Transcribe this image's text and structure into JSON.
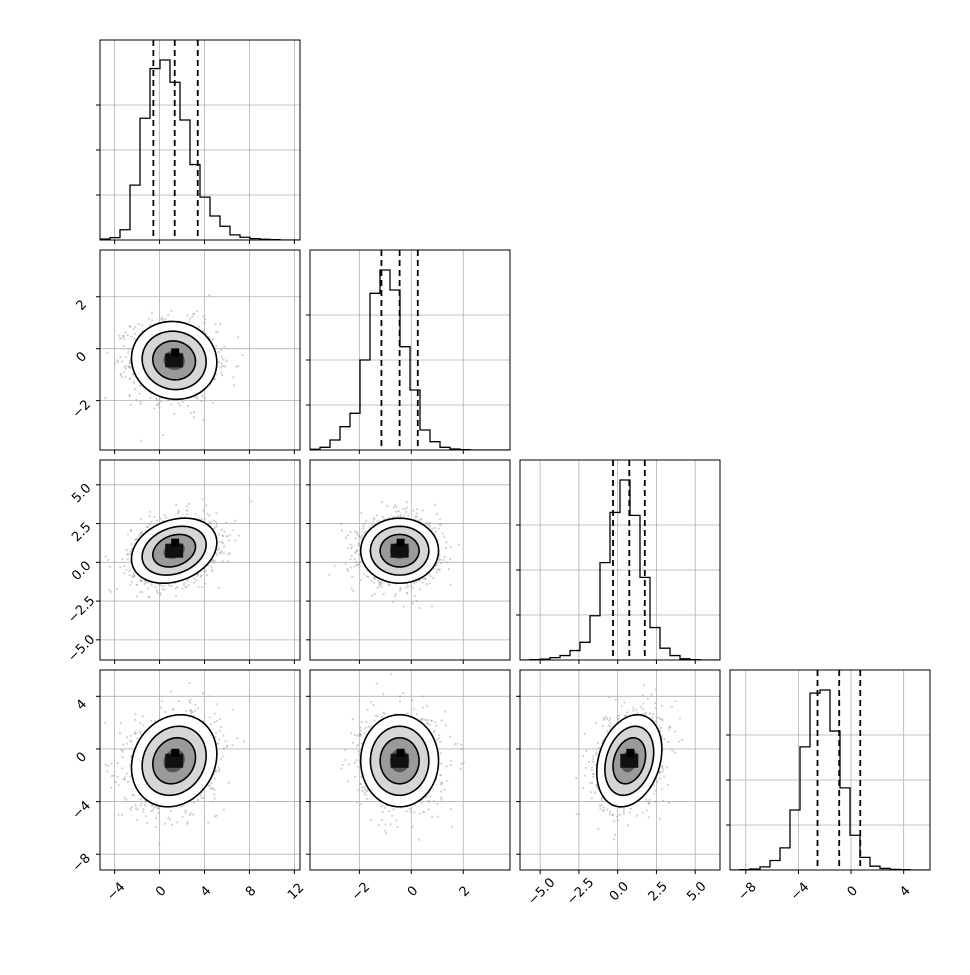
{
  "chart_data": {
    "type": "corner",
    "n_params": 4,
    "grid": true,
    "quantiles": [
      0.16,
      0.5,
      0.84
    ],
    "params": [
      {
        "mean": 1.3,
        "sd": 1.9,
        "lim": [
          -5.3,
          12.5
        ],
        "ticks": [
          -4,
          0,
          4,
          8,
          12
        ],
        "tick_labels": [
          "−4",
          "0",
          "4",
          "8",
          "12"
        ],
        "quantile_values": [
          -0.55,
          1.35,
          3.4
        ]
      },
      {
        "mean": -0.45,
        "sd": 0.75,
        "lim": [
          -3.9,
          3.8
        ],
        "ticks": [
          -2,
          0,
          2
        ],
        "tick_labels": [
          "−2",
          "0",
          "2"
        ],
        "quantile_values": [
          -1.15,
          -0.45,
          0.25
        ]
      },
      {
        "mean": 0.75,
        "sd": 1.05,
        "lim": [
          -6.3,
          6.6
        ],
        "ticks": [
          -5,
          -2.5,
          0,
          2.5,
          5
        ],
        "tick_labels": [
          "−5.0",
          "−2.5",
          "0.0",
          "2.5",
          "5.0"
        ],
        "quantile_values": [
          -0.3,
          0.75,
          1.75
        ]
      },
      {
        "mean": -0.9,
        "sd": 1.75,
        "lim": [
          -9.2,
          6.0
        ],
        "ticks": [
          -8,
          -4,
          0,
          4
        ],
        "tick_labels": [
          "−8",
          "−4",
          "0",
          "4"
        ],
        "quantile_values": [
          -2.55,
          -0.9,
          0.7
        ]
      }
    ],
    "correlations": [
      [
        1.0,
        -0.05,
        0.25,
        0.15
      ],
      [
        -0.05,
        1.0,
        0.0,
        0.0
      ],
      [
        0.25,
        0.0,
        1.0,
        0.25
      ],
      [
        0.15,
        0.0,
        0.25,
        1.0
      ]
    ],
    "histograms": [
      {
        "bins": 20,
        "counts": [
          3,
          7,
          30,
          160,
          355,
          500,
          525,
          460,
          350,
          220,
          125,
          70,
          40,
          15,
          8,
          4,
          2,
          1,
          0,
          0
        ]
      },
      {
        "bins": 20,
        "counts": [
          2,
          8,
          30,
          70,
          110,
          270,
          470,
          540,
          480,
          310,
          180,
          60,
          25,
          8,
          3,
          1,
          0,
          0,
          0,
          0
        ]
      },
      {
        "bins": 20,
        "counts": [
          0,
          1,
          3,
          8,
          15,
          32,
          60,
          150,
          330,
          500,
          610,
          490,
          280,
          110,
          40,
          15,
          4,
          1,
          0,
          0
        ]
      },
      {
        "bins": 20,
        "counts": [
          0,
          1,
          3,
          10,
          30,
          70,
          190,
          390,
          560,
          570,
          440,
          260,
          110,
          40,
          12,
          5,
          2,
          1,
          0,
          0
        ]
      }
    ],
    "contour_levels_sigma": [
      0.5,
      1.0,
      1.5,
      2.0
    ]
  }
}
